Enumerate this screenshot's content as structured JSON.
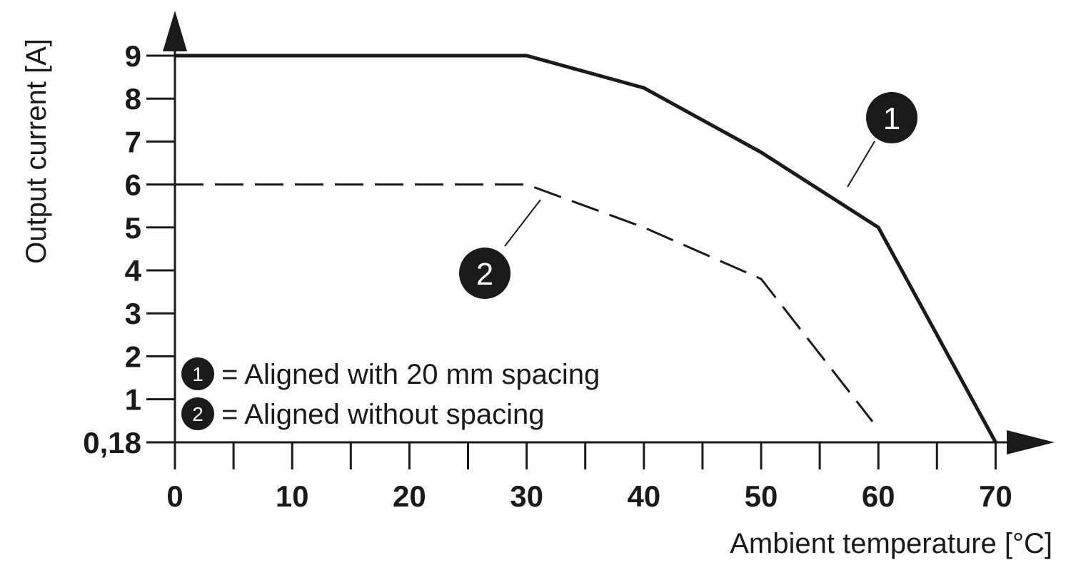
{
  "chart_data": {
    "type": "line",
    "xlabel": "Ambient temperature [°C]",
    "ylabel": "Output current [A]",
    "xlim": [
      0,
      70
    ],
    "ylim": [
      0.18,
      9
    ],
    "x_ticks": [
      0,
      10,
      20,
      30,
      40,
      50,
      60,
      70
    ],
    "x_minor_ticks": [
      5,
      15,
      25,
      35,
      45,
      55,
      65
    ],
    "y_ticks": [
      {
        "value": 0.18,
        "label": "0,18"
      },
      {
        "value": 1,
        "label": "1"
      },
      {
        "value": 2,
        "label": "2"
      },
      {
        "value": 3,
        "label": "3"
      },
      {
        "value": 4,
        "label": "4"
      },
      {
        "value": 5,
        "label": "5"
      },
      {
        "value": 6,
        "label": "6"
      },
      {
        "value": 7,
        "label": "7"
      },
      {
        "value": 8,
        "label": "8"
      },
      {
        "value": 9,
        "label": "9"
      }
    ],
    "series": [
      {
        "marker": "1",
        "style": "solid",
        "points": [
          [
            0,
            9
          ],
          [
            30,
            9
          ],
          [
            40,
            8.25
          ],
          [
            50,
            6.75
          ],
          [
            60,
            5
          ],
          [
            70,
            0.18
          ]
        ]
      },
      {
        "marker": "2",
        "style": "dashed",
        "points": [
          [
            0,
            6
          ],
          [
            30,
            6
          ],
          [
            40,
            5
          ],
          [
            50,
            3.8
          ],
          [
            59.5,
            0.48
          ]
        ]
      }
    ],
    "legend": {
      "placement": "bottom-left",
      "entries": [
        {
          "marker": "1",
          "text": "= Aligned with 20 mm spacing"
        },
        {
          "marker": "2",
          "text": "= Aligned without spacing"
        }
      ]
    },
    "grid": false
  },
  "colors": {
    "line": "#1a1a1a",
    "badge_fill": "#1a1a1a",
    "badge_text": "#ffffff",
    "background": "#ffffff"
  }
}
